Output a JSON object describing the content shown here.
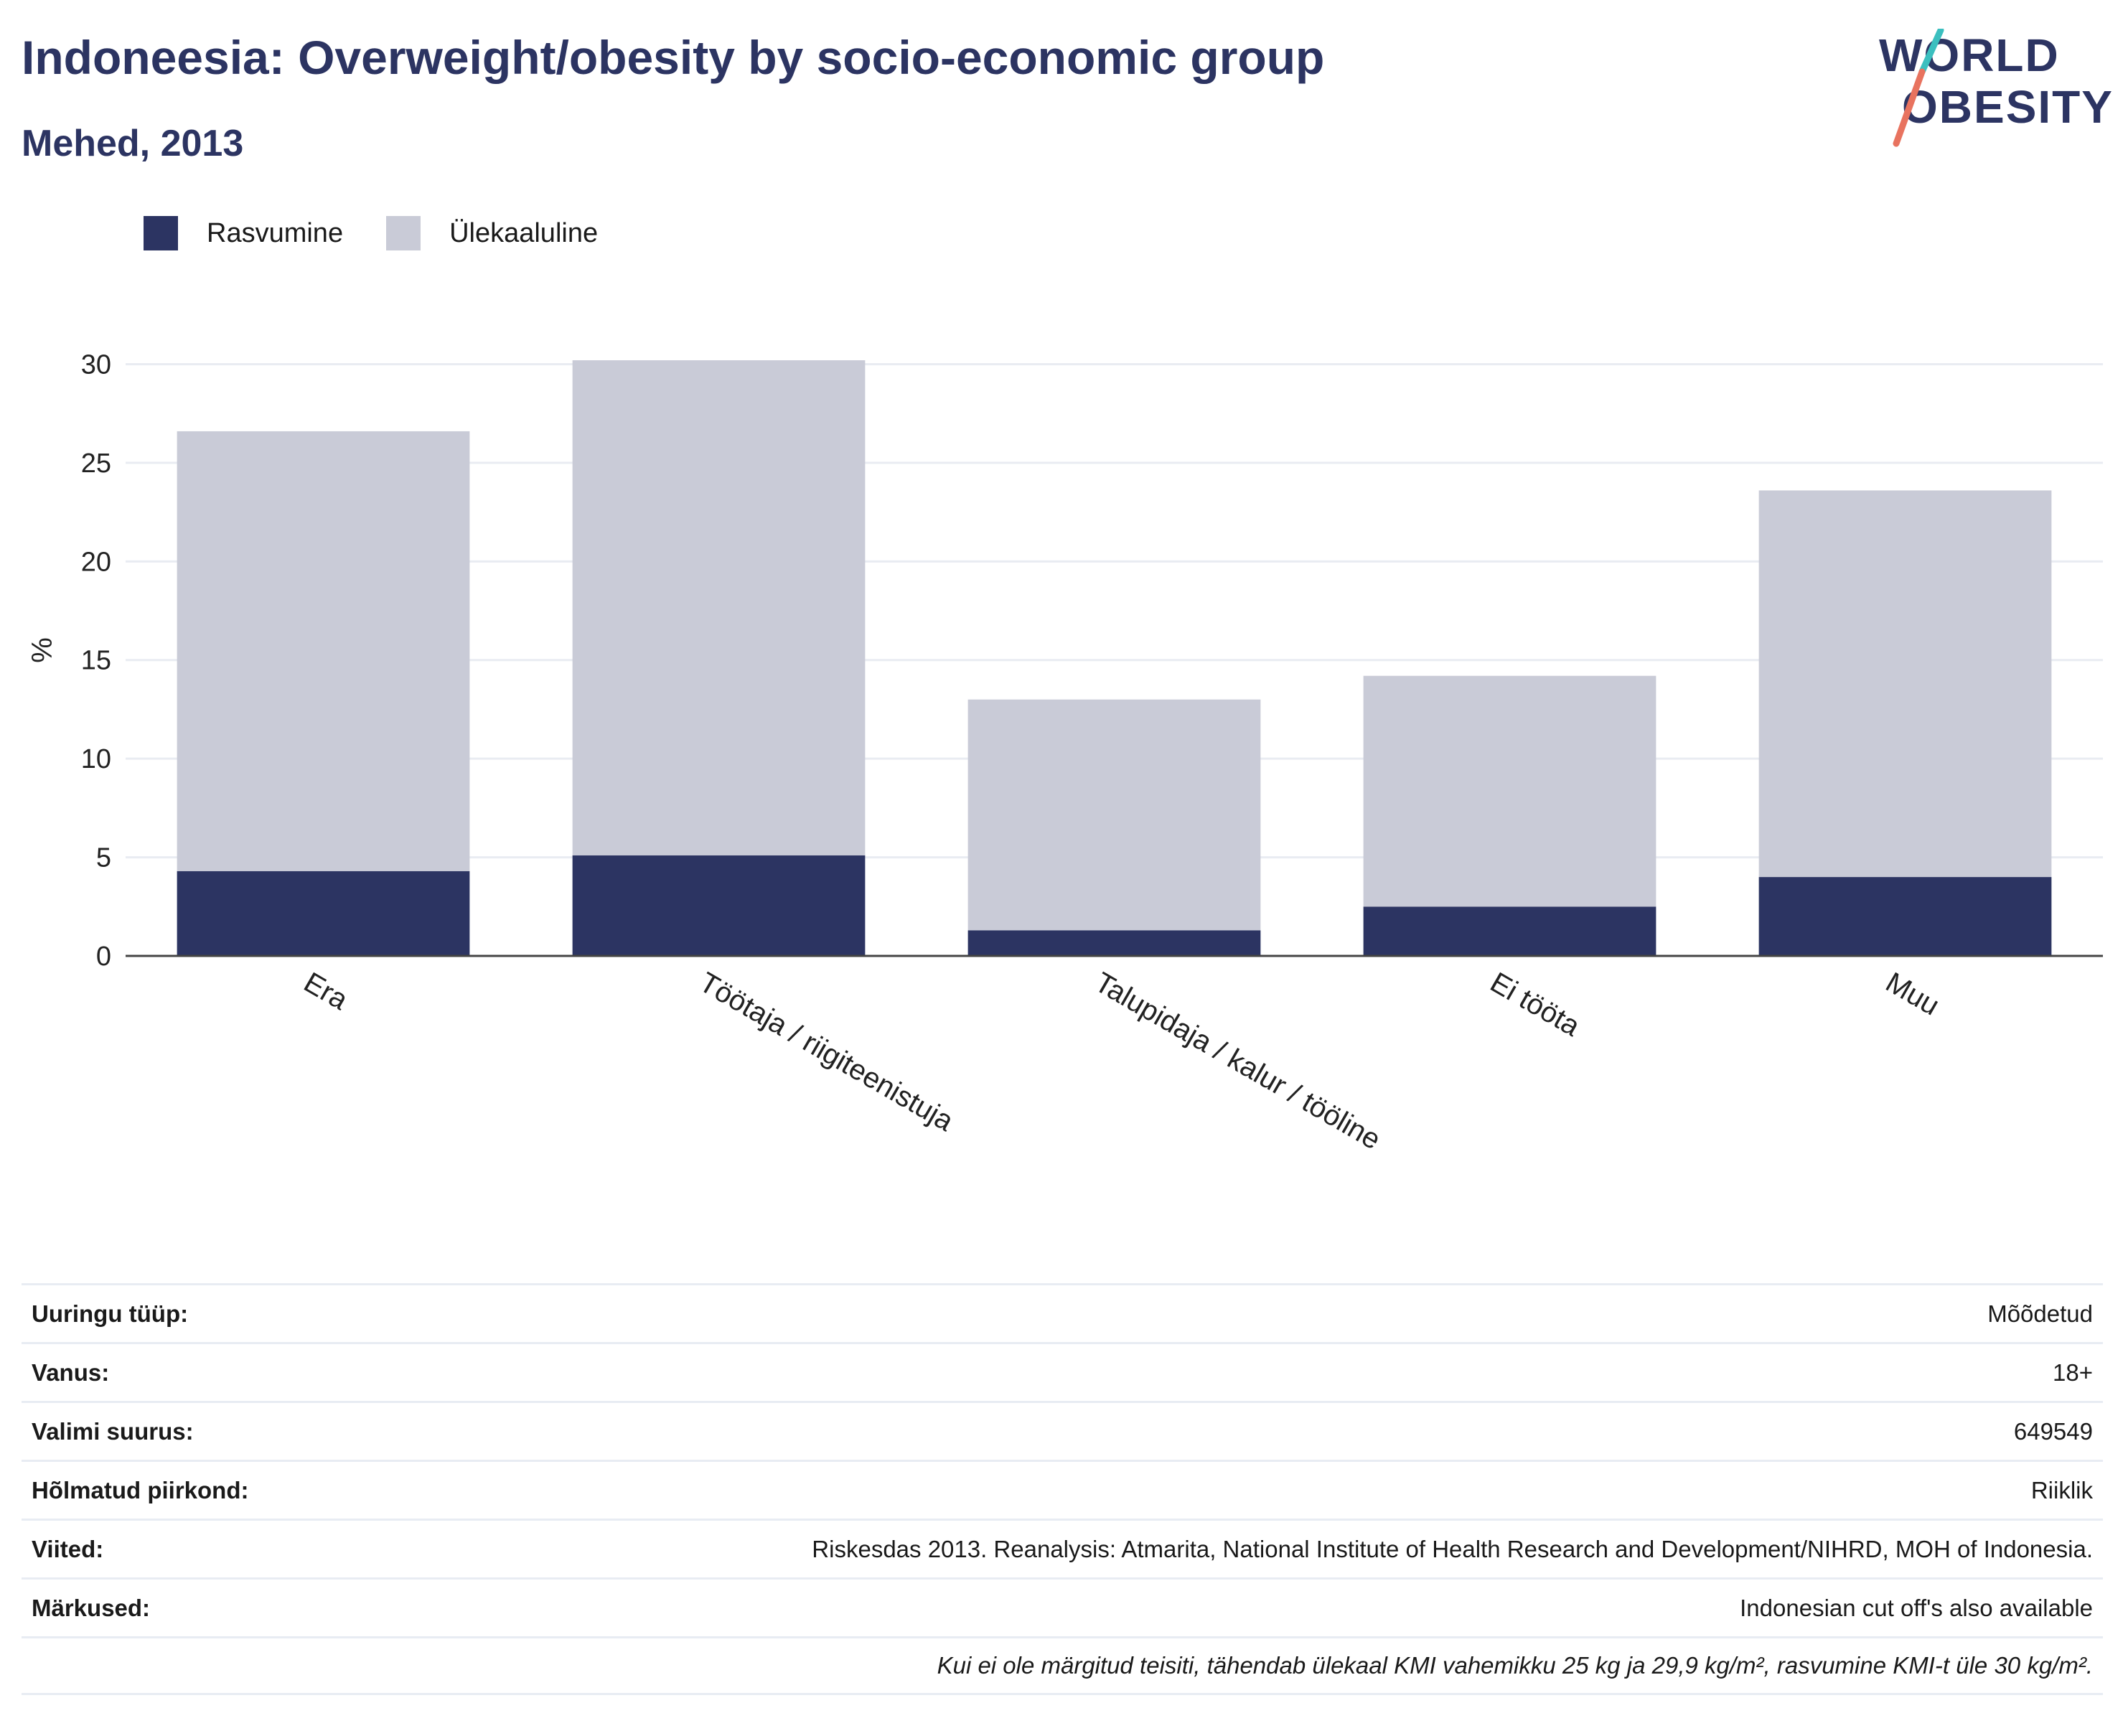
{
  "header": {
    "title": "Indoneesia: Overweight/obesity by socio-economic group",
    "subtitle": "Mehed, 2013",
    "logo_line1": "WORLD",
    "logo_line2": "OBESITY"
  },
  "legend": {
    "items": [
      {
        "label": "Rasvumine",
        "color": "#2c3462"
      },
      {
        "label": "Ülekaaluline",
        "color": "#c9cbd7"
      }
    ]
  },
  "chart_data": {
    "type": "bar",
    "stacked": true,
    "ylabel": "%",
    "ylim": [
      0,
      31
    ],
    "yticks": [
      0,
      5,
      10,
      15,
      20,
      25,
      30
    ],
    "grid": true,
    "legend_position": "top-left",
    "categories": [
      "Era",
      "Töötaja / riigiteenistuja",
      "Talupidaja / kalur / tööline",
      "Ei tööta",
      "Muu"
    ],
    "series": [
      {
        "name": "Rasvumine",
        "color": "#2c3462",
        "values": [
          4.3,
          5.1,
          1.3,
          2.5,
          4.0
        ]
      },
      {
        "name": "Ülekaaluline",
        "color": "#c9cbd7",
        "values": [
          22.3,
          25.1,
          11.7,
          11.7,
          19.6
        ]
      }
    ]
  },
  "info": {
    "rows": [
      {
        "key": "Uuringu tüüp:",
        "value": "Mõõdetud"
      },
      {
        "key": "Vanus:",
        "value": "18+"
      },
      {
        "key": "Valimi suurus:",
        "value": "649549"
      },
      {
        "key": "Hõlmatud piirkond:",
        "value": "Riiklik"
      },
      {
        "key": "Viited:",
        "value": "Riskesdas 2013. Reanalysis: Atmarita, National Institute of Health Research and Development/NIHRD, MOH of Indonesia."
      },
      {
        "key": "Märkused:",
        "value": "Indonesian cut off's also available"
      }
    ],
    "footnote": "Kui ei ole märgitud teisiti, tähendab ülekaal KMI vahemikku 25 kg ja 29,9 kg/m², rasvumine KMI-t üle 30 kg/m²."
  }
}
